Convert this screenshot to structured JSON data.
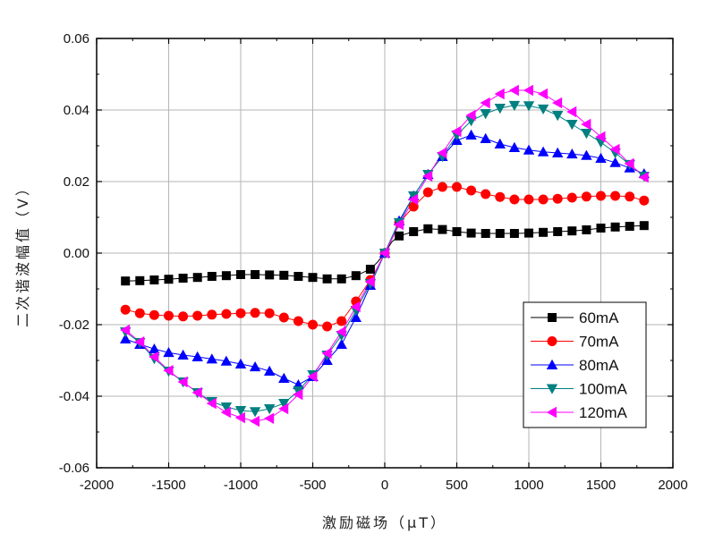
{
  "chart_data": {
    "type": "line",
    "xlabel": "激励磁场（μT）",
    "ylabel": "二次谐波幅值（V）",
    "xlim": [
      -2000,
      2000
    ],
    "ylim": [
      -0.06,
      0.06
    ],
    "xticks": [
      -2000,
      -1500,
      -1000,
      -500,
      0,
      500,
      1000,
      1500,
      2000
    ],
    "yticks": [
      -0.06,
      -0.04,
      -0.02,
      0.0,
      0.02,
      0.04,
      0.06
    ],
    "xtick_labels": [
      "-2000",
      "-1500",
      "-1000",
      "-500",
      "0",
      "500",
      "1000",
      "1500",
      "2000"
    ],
    "ytick_labels": [
      "-0.06",
      "-0.04",
      "-0.02",
      "0.00",
      "0.02",
      "0.04",
      "0.06"
    ],
    "grid": true,
    "legend_position": "bottom-right",
    "x": [
      -1800,
      -1700,
      -1600,
      -1500,
      -1400,
      -1300,
      -1200,
      -1100,
      -1000,
      -900,
      -800,
      -700,
      -600,
      -500,
      -400,
      -300,
      -200,
      -100,
      -50,
      0,
      50,
      100,
      200,
      300,
      400,
      500,
      600,
      700,
      800,
      900,
      1000,
      1100,
      1200,
      1300,
      1400,
      1500,
      1600,
      1700,
      1800
    ],
    "series": [
      {
        "name": "60mA",
        "color": "#000000",
        "marker": "square",
        "values": [
          -0.0078,
          -0.0077,
          -0.0075,
          -0.0073,
          -0.007,
          -0.0068,
          -0.0065,
          -0.0063,
          -0.006,
          -0.006,
          -0.0061,
          -0.0062,
          -0.0065,
          -0.0068,
          -0.0072,
          -0.0072,
          -0.0063,
          -0.0045,
          -0.0025,
          0.0,
          0.0032,
          0.0048,
          0.006,
          0.0068,
          0.0066,
          0.006,
          0.0056,
          0.0055,
          0.0055,
          0.0055,
          0.0056,
          0.0058,
          0.006,
          0.0062,
          0.0065,
          0.007,
          0.0073,
          0.0075,
          0.0077
        ]
      },
      {
        "name": "70mA",
        "color": "#ff0000",
        "marker": "circle",
        "values": [
          -0.0158,
          -0.0168,
          -0.0173,
          -0.0175,
          -0.0177,
          -0.0175,
          -0.0172,
          -0.017,
          -0.0168,
          -0.0167,
          -0.0168,
          -0.018,
          -0.019,
          -0.02,
          -0.0205,
          -0.019,
          -0.0135,
          -0.0075,
          -0.004,
          0.0,
          0.004,
          0.0085,
          0.013,
          0.017,
          0.0185,
          0.0185,
          0.0175,
          0.0165,
          0.0157,
          0.015,
          0.015,
          0.015,
          0.0152,
          0.0155,
          0.0158,
          0.016,
          0.016,
          0.0158,
          0.0147
        ]
      },
      {
        "name": "80mA",
        "color": "#0000ff",
        "marker": "triangle-up",
        "values": [
          -0.024,
          -0.0255,
          -0.0268,
          -0.0278,
          -0.0285,
          -0.029,
          -0.0296,
          -0.0302,
          -0.031,
          -0.0318,
          -0.033,
          -0.035,
          -0.0368,
          -0.0345,
          -0.03,
          -0.0255,
          -0.018,
          -0.009,
          -0.0045,
          0.0,
          0.0045,
          0.009,
          0.016,
          0.022,
          0.027,
          0.0315,
          0.033,
          0.032,
          0.0305,
          0.0295,
          0.0288,
          0.0283,
          0.028,
          0.0277,
          0.0273,
          0.0265,
          0.0253,
          0.0238,
          0.0222
        ]
      },
      {
        "name": "100mA",
        "color": "#008080",
        "marker": "triangle-down",
        "values": [
          -0.022,
          -0.025,
          -0.0295,
          -0.033,
          -0.036,
          -0.039,
          -0.0415,
          -0.043,
          -0.044,
          -0.0443,
          -0.0435,
          -0.042,
          -0.0385,
          -0.034,
          -0.0285,
          -0.023,
          -0.016,
          -0.0085,
          -0.0045,
          0.0,
          0.0045,
          0.0085,
          0.016,
          0.022,
          0.027,
          0.033,
          0.037,
          0.039,
          0.0405,
          0.0413,
          0.0412,
          0.0403,
          0.0385,
          0.036,
          0.0335,
          0.031,
          0.028,
          0.0248,
          0.0215
        ]
      },
      {
        "name": "120mA",
        "color": "#ff00ff",
        "marker": "triangle-left",
        "values": [
          -0.0215,
          -0.0248,
          -0.029,
          -0.0328,
          -0.036,
          -0.039,
          -0.042,
          -0.0445,
          -0.046,
          -0.047,
          -0.0462,
          -0.0435,
          -0.0395,
          -0.0345,
          -0.028,
          -0.022,
          -0.015,
          -0.008,
          -0.004,
          0.0,
          0.004,
          0.008,
          0.015,
          0.0215,
          0.028,
          0.034,
          0.0385,
          0.042,
          0.0445,
          0.0455,
          0.0455,
          0.0445,
          0.042,
          0.0395,
          0.036,
          0.0325,
          0.029,
          0.025,
          0.0212
        ]
      }
    ]
  }
}
